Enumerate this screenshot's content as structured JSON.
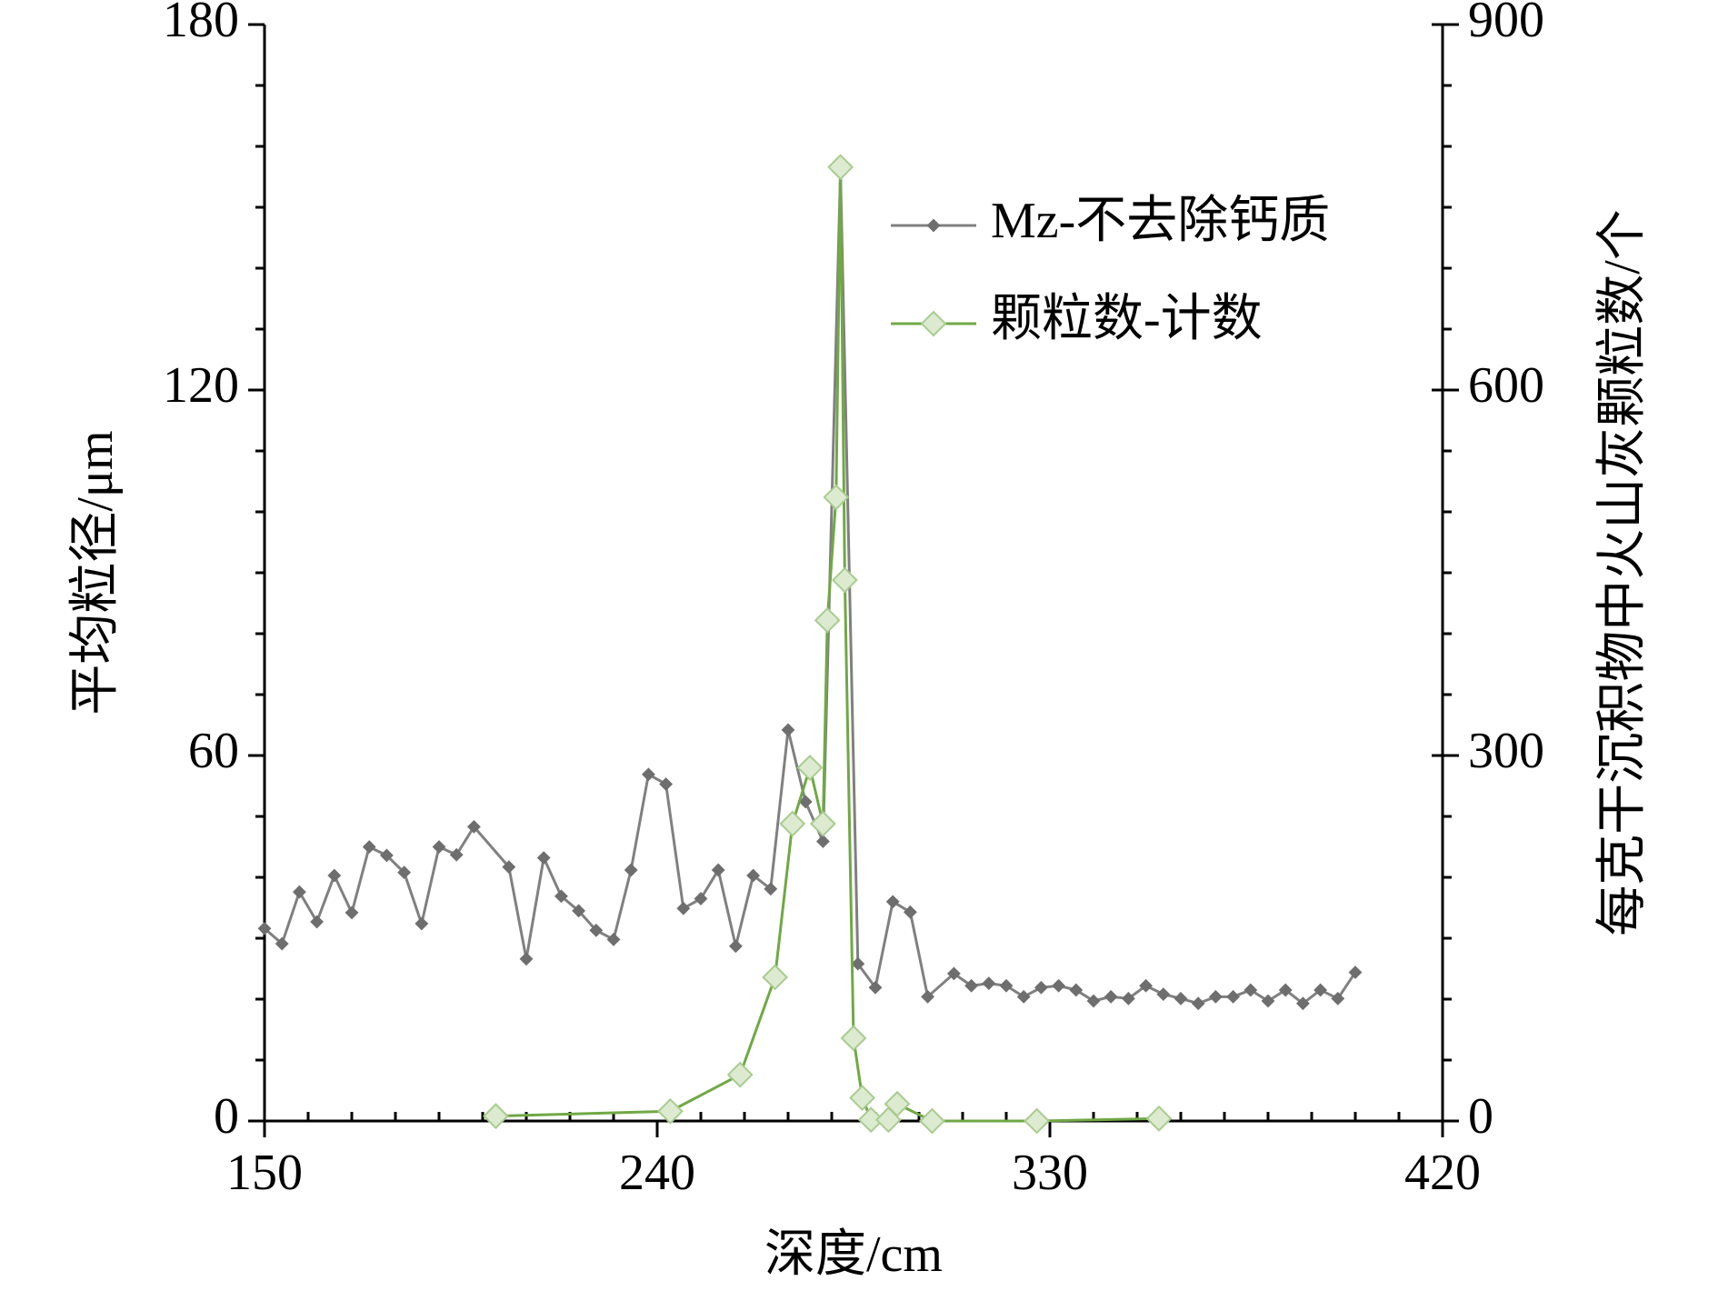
{
  "chart_data": {
    "type": "line",
    "xlabel": "深度/cm",
    "ylabel": "平均粒径/μm",
    "y2label": "每克干沉积物中火山灰颗粒数/个",
    "xlim": [
      150,
      420
    ],
    "xticks": [
      150,
      240,
      330,
      420
    ],
    "ylim": [
      0,
      180
    ],
    "yticks": [
      0,
      60,
      120,
      180
    ],
    "y2lim": [
      0,
      900
    ],
    "y2ticks": [
      0,
      300,
      600,
      900
    ],
    "legend": "upper right",
    "series": [
      {
        "name": "Mz-不去除钙质",
        "color": "#808080",
        "marker_color": "#6e6e6e",
        "marker": "small-diamond",
        "x": [
          150,
          154,
          158,
          162,
          166,
          170,
          174,
          178,
          182,
          186,
          190,
          194,
          198,
          206,
          210,
          214,
          218,
          222,
          226,
          230,
          234,
          238,
          242,
          246,
          250,
          254,
          258,
          262,
          266,
          270,
          274,
          278,
          282,
          286,
          290,
          294,
          298,
          302,
          308,
          312,
          316,
          320,
          324,
          328,
          332,
          336,
          340,
          344,
          348,
          352,
          356,
          360,
          364,
          368,
          372,
          376,
          380,
          384,
          388,
          392,
          396,
          400
        ],
        "values": [
          31.6,
          29.1,
          37.6,
          32.7,
          40.3,
          34.2,
          45,
          43.6,
          40.8,
          32.4,
          45,
          43.7,
          48.3,
          41.7,
          26.6,
          43.2,
          36.9,
          34.5,
          31.3,
          29.8,
          41.2,
          56.9,
          55.3,
          34.9,
          36.5,
          41.2,
          28.7,
          40.3,
          38.1,
          64.2,
          52.4,
          45.9,
          155.8,
          25.8,
          21.9,
          36,
          34.3,
          20.4,
          24.2,
          22.2,
          22.6,
          22.2,
          20.4,
          21.9,
          22.2,
          21.5,
          19.7,
          20.4,
          20.1,
          22.2,
          20.8,
          20.1,
          19.3,
          20.4,
          20.4,
          21.5,
          19.7,
          21.5,
          19.3,
          21.5,
          20.1,
          24.4
        ]
      },
      {
        "name": "颗粒数-计数",
        "color": "#70a845",
        "marker_color": "#dcebd0",
        "marker": "large-diamond",
        "axis": "y2",
        "x": [
          203,
          243,
          259,
          267,
          271,
          275,
          278,
          279,
          281,
          282,
          283,
          285,
          287,
          289,
          293,
          295,
          303,
          327,
          355
        ],
        "values": [
          4,
          8,
          38,
          118,
          244,
          290,
          244,
          411,
          512,
          783,
          444,
          68,
          19,
          1,
          1,
          14,
          0,
          0,
          2
        ]
      }
    ]
  }
}
